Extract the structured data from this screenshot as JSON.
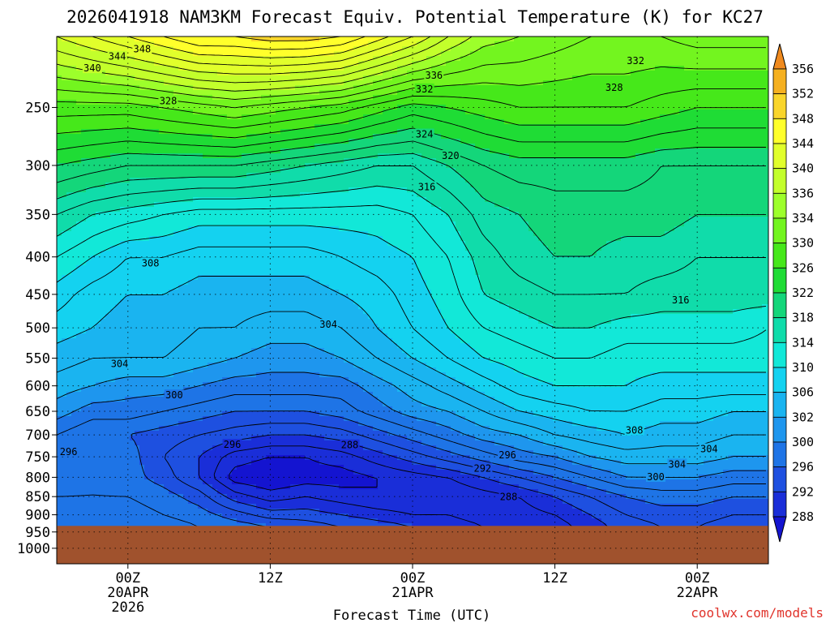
{
  "chart_data": {
    "type": "heatmap",
    "title": "2026041918 NAM3KM Forecast Equiv. Potential Temperature (K) for KC27",
    "xlabel": "Forecast Time (UTC)",
    "ylabel": "",
    "x_ticks": [
      {
        "lines": [
          "00Z",
          "20APR",
          "2026"
        ],
        "hours": 6
      },
      {
        "lines": [
          "12Z"
        ],
        "hours": 18
      },
      {
        "lines": [
          "00Z",
          "21APR"
        ],
        "hours": 30
      },
      {
        "lines": [
          "12Z"
        ],
        "hours": 42
      },
      {
        "lines": [
          "00Z",
          "22APR"
        ],
        "hours": 54
      }
    ],
    "xlim_hours": [
      0,
      60
    ],
    "y_ticks": [
      "250",
      "300",
      "350",
      "400",
      "450",
      "500",
      "550",
      "600",
      "650",
      "700",
      "750",
      "800",
      "850",
      "900",
      "950",
      "1000"
    ],
    "ylim_hPa": [
      200,
      1050
    ],
    "y_scale": "log",
    "grid": true,
    "colorbar": {
      "labels": [
        "356",
        "352",
        "348",
        "344",
        "340",
        "336",
        "334",
        "330",
        "326",
        "322",
        "318",
        "314",
        "310",
        "306",
        "302",
        "300",
        "296",
        "292",
        "288"
      ],
      "colors": [
        "#f08a1e",
        "#f5b020",
        "#f9d52b",
        "#ffff2b",
        "#e1ff2b",
        "#c3ff2b",
        "#9dff2b",
        "#73f51f",
        "#46e81a",
        "#1fdc35",
        "#14d67a",
        "#10dcaa",
        "#12e8d8",
        "#14d2f0",
        "#1ab4f0",
        "#1e96ee",
        "#1e74e6",
        "#1e50e0",
        "#1a2ed8",
        "#1414d0"
      ]
    },
    "ground": {
      "top_hPa": 932,
      "color": "#a0522d"
    },
    "profile": {
      "hours": [
        0,
        3,
        6,
        9,
        12,
        15,
        18,
        21,
        24,
        27,
        30,
        33,
        36,
        39,
        42,
        45,
        48,
        51,
        54,
        57,
        60
      ],
      "levels_hPa": [
        200,
        250,
        300,
        350,
        400,
        450,
        500,
        550,
        600,
        650,
        700,
        750,
        800,
        850,
        900,
        932
      ],
      "theta_e": [
        [
          340,
          342,
          344,
          346,
          348,
          348,
          349,
          349,
          348,
          345,
          342,
          338,
          335,
          334,
          333,
          332,
          332,
          332,
          333,
          333,
          333
        ],
        [
          329,
          329,
          329,
          330,
          331,
          332,
          331,
          330,
          329,
          327,
          325,
          326,
          327,
          328,
          328,
          328,
          328,
          327,
          326,
          326,
          326
        ],
        [
          322,
          321,
          320,
          320,
          320,
          320,
          319,
          318,
          317,
          316,
          316,
          318,
          320,
          321,
          321,
          321,
          321,
          320,
          320,
          320,
          320
        ],
        [
          316,
          314,
          313,
          312,
          311,
          311,
          311,
          311,
          311,
          311,
          312,
          314,
          317,
          318,
          319,
          319,
          319,
          319,
          318,
          318,
          318
        ],
        [
          312,
          310,
          308,
          308,
          307,
          307,
          307,
          307,
          308,
          309,
          310,
          312,
          315,
          317,
          318,
          318,
          317,
          317,
          316,
          316,
          316
        ],
        [
          309,
          307,
          306,
          306,
          305,
          305,
          305,
          305,
          306,
          307,
          309,
          311,
          314,
          315,
          316,
          316,
          316,
          315,
          315,
          315,
          315
        ],
        [
          307,
          306,
          305,
          305,
          304,
          304,
          303,
          303,
          304,
          306,
          308,
          310,
          312,
          313,
          314,
          314,
          313,
          313,
          313,
          313,
          312
        ],
        [
          305,
          304,
          304,
          304,
          303,
          302,
          301,
          301,
          302,
          304,
          306,
          308,
          310,
          311,
          312,
          312,
          311,
          311,
          311,
          311,
          311
        ],
        [
          303,
          302,
          301,
          301,
          300,
          299,
          299,
          299,
          299,
          301,
          303,
          305,
          307,
          309,
          310,
          310,
          310,
          309,
          309,
          309,
          309
        ],
        [
          301,
          299,
          299,
          298,
          297,
          296,
          296,
          296,
          297,
          299,
          301,
          302,
          304,
          306,
          307,
          308,
          308,
          307,
          307,
          306,
          306
        ],
        [
          298,
          296,
          296,
          295,
          294,
          293,
          292,
          292,
          293,
          295,
          297,
          299,
          301,
          302,
          304,
          305,
          306,
          305,
          305,
          304,
          304
        ],
        [
          296,
          296,
          297,
          294,
          292,
          289,
          288,
          288,
          289,
          291,
          293,
          295,
          297,
          299,
          300,
          302,
          303,
          303,
          303,
          302,
          302
        ],
        [
          297,
          298,
          297,
          295,
          292,
          287,
          286,
          287,
          287,
          288,
          289,
          290,
          292,
          294,
          296,
          298,
          300,
          300,
          300,
          299,
          299
        ],
        [
          298,
          298,
          298,
          297,
          295,
          291,
          289,
          290,
          289,
          288,
          288,
          288,
          289,
          290,
          292,
          294,
          296,
          297,
          297,
          296,
          296
        ],
        [
          299,
          299,
          299,
          298,
          297,
          295,
          293,
          293,
          292,
          291,
          290,
          290,
          289,
          289,
          290,
          292,
          294,
          295,
          295,
          294,
          294
        ],
        [
          300,
          300,
          300,
          299,
          298,
          297,
          296,
          295,
          294,
          293,
          292,
          291,
          290,
          289,
          289,
          291,
          293,
          294,
          294,
          293,
          293
        ]
      ]
    },
    "contour_labels": [
      {
        "text": "348",
        "hours": 7.2,
        "hPa": 208
      },
      {
        "text": "344",
        "hours": 5.1,
        "hPa": 213
      },
      {
        "text": "340",
        "hours": 3.0,
        "hPa": 221
      },
      {
        "text": "336",
        "hours": 31.8,
        "hPa": 226
      },
      {
        "text": "332",
        "hours": 31.0,
        "hPa": 236
      },
      {
        "text": "332",
        "hours": 48.8,
        "hPa": 216
      },
      {
        "text": "328",
        "hours": 47.0,
        "hPa": 235
      },
      {
        "text": "328",
        "hours": 9.4,
        "hPa": 245
      },
      {
        "text": "324",
        "hours": 31.0,
        "hPa": 272
      },
      {
        "text": "320",
        "hours": 33.2,
        "hPa": 291
      },
      {
        "text": "316",
        "hours": 31.2,
        "hPa": 321
      },
      {
        "text": "316",
        "hours": 52.6,
        "hPa": 458
      },
      {
        "text": "308",
        "hours": 7.9,
        "hPa": 408
      },
      {
        "text": "304",
        "hours": 22.9,
        "hPa": 495
      },
      {
        "text": "304",
        "hours": 5.3,
        "hPa": 560
      },
      {
        "text": "300",
        "hours": 9.9,
        "hPa": 618
      },
      {
        "text": "296",
        "hours": 1.0,
        "hPa": 738
      },
      {
        "text": "296",
        "hours": 14.8,
        "hPa": 722
      },
      {
        "text": "288",
        "hours": 24.7,
        "hPa": 723
      },
      {
        "text": "296",
        "hours": 38.0,
        "hPa": 746
      },
      {
        "text": "292",
        "hours": 35.9,
        "hPa": 778
      },
      {
        "text": "288",
        "hours": 38.1,
        "hPa": 851
      },
      {
        "text": "308",
        "hours": 48.7,
        "hPa": 690
      },
      {
        "text": "304",
        "hours": 55.0,
        "hPa": 732
      },
      {
        "text": "304",
        "hours": 52.3,
        "hPa": 768
      },
      {
        "text": "300",
        "hours": 50.5,
        "hPa": 799
      }
    ]
  },
  "credit": "coolwx.com/models"
}
